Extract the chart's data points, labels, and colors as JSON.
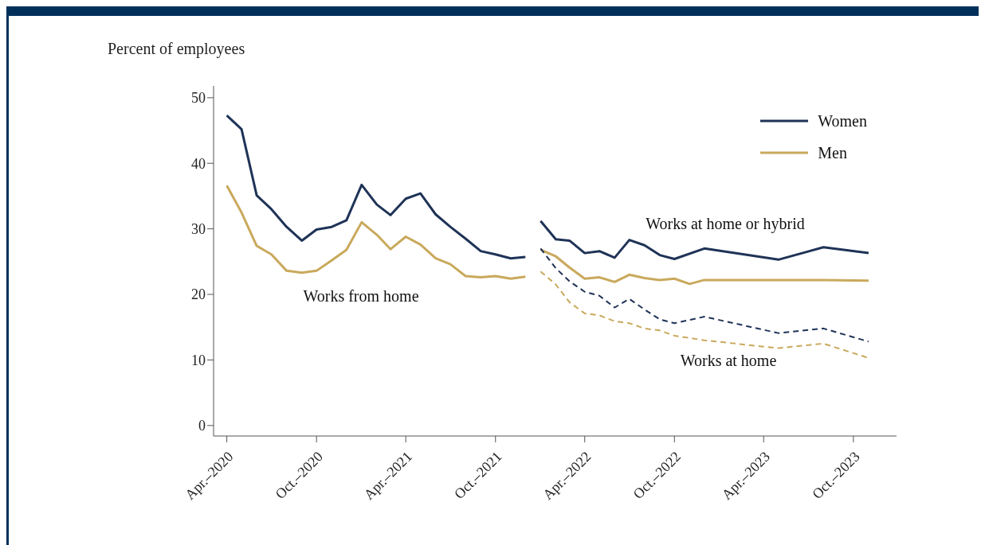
{
  "chart_data": {
    "type": "line",
    "ylabel": "Percent of employees",
    "xlim": [
      "2020-03-05",
      "2023-12-28"
    ],
    "ylim": [
      -1.6,
      51.8
    ],
    "yticks": [
      0,
      10,
      20,
      30,
      40,
      50
    ],
    "xticks": [
      {
        "value": "2020-04",
        "label": "Apr.–2020"
      },
      {
        "value": "2020-10",
        "label": "Oct.–2020"
      },
      {
        "value": "2021-04",
        "label": "Apr.–2021"
      },
      {
        "value": "2021-10",
        "label": "Oct.–2021"
      },
      {
        "value": "2022-04",
        "label": "Apr.–2022"
      },
      {
        "value": "2022-10",
        "label": "Oct.–2022"
      },
      {
        "value": "2023-04",
        "label": "Apr.–2023"
      },
      {
        "value": "2023-10",
        "label": "Oct.–2023"
      }
    ],
    "legend": "top right",
    "series": [
      {
        "name": "Women",
        "color": "#1f3357",
        "x": [
          "2020-04",
          "2020-05",
          "2020-06",
          "2020-07",
          "2020-08",
          "2020-09",
          "2020-10",
          "2020-11",
          "2020-12",
          "2021-01",
          "2021-02",
          "2021-03",
          "2021-04",
          "2021-05",
          "2021-06",
          "2021-07",
          "2021-08",
          "2021-09",
          "2021-10",
          "2021-11",
          "2021-12"
        ],
        "values": [
          47.3,
          45.2,
          35.1,
          33.0,
          30.3,
          28.2,
          29.9,
          30.3,
          31.3,
          36.7,
          33.7,
          32.1,
          34.6,
          35.4,
          32.2,
          30.3,
          28.5,
          26.6,
          26.1,
          25.5,
          25.7
        ]
      },
      {
        "name": "Men",
        "color": "#c9a95c",
        "x": [
          "2020-04",
          "2020-05",
          "2020-06",
          "2020-07",
          "2020-08",
          "2020-09",
          "2020-10",
          "2020-11",
          "2020-12",
          "2021-01",
          "2021-02",
          "2021-03",
          "2021-04",
          "2021-05",
          "2021-06",
          "2021-07",
          "2021-08",
          "2021-09",
          "2021-10",
          "2021-11",
          "2021-12"
        ],
        "values": [
          36.6,
          32.5,
          27.4,
          26.1,
          23.6,
          23.3,
          23.6,
          25.2,
          26.8,
          31.0,
          29.1,
          26.9,
          28.8,
          27.6,
          25.5,
          24.6,
          22.8,
          22.6,
          22.8,
          22.4,
          22.7
        ]
      },
      {
        "color": "#1f3357",
        "x": [
          "2022-01",
          "2022-02",
          "2022-03",
          "2022-04",
          "2022-05",
          "2022-06",
          "2022-07",
          "2022-08",
          "2022-09",
          "2022-10",
          "2022-12",
          "2023-05",
          "2023-08",
          "2023-11"
        ],
        "values": [
          31.2,
          28.4,
          28.2,
          26.3,
          26.6,
          25.6,
          28.3,
          27.5,
          26.0,
          25.4,
          27.0,
          25.3,
          27.2,
          26.3
        ]
      },
      {
        "color": "#c9a95c",
        "x": [
          "2022-01",
          "2022-02",
          "2022-03",
          "2022-04",
          "2022-05",
          "2022-06",
          "2022-07",
          "2022-08",
          "2022-09",
          "2022-10",
          "2022-11",
          "2022-12",
          "2023-05",
          "2023-08",
          "2023-11"
        ],
        "values": [
          26.8,
          25.8,
          24.1,
          22.4,
          22.6,
          21.9,
          23.0,
          22.5,
          22.2,
          22.4,
          21.6,
          22.2,
          22.2,
          22.2,
          22.1
        ]
      },
      {
        "color": "#1f3357",
        "line_style": "dashed",
        "x": [
          "2022-01",
          "2022-02",
          "2022-03",
          "2022-04",
          "2022-05",
          "2022-06",
          "2022-07",
          "2022-08",
          "2022-09",
          "2022-10",
          "2022-12",
          "2023-05",
          "2023-08",
          "2023-11"
        ],
        "values": [
          27.0,
          24.0,
          22.0,
          20.4,
          19.8,
          18.0,
          19.3,
          17.7,
          16.2,
          15.6,
          16.6,
          14.1,
          14.8,
          12.8
        ]
      },
      {
        "color": "#c9a95c",
        "line_style": "dashed",
        "x": [
          "2022-01",
          "2022-02",
          "2022-03",
          "2022-04",
          "2022-05",
          "2022-06",
          "2022-07",
          "2022-08",
          "2022-09",
          "2022-10",
          "2022-12",
          "2023-05",
          "2023-08",
          "2023-11"
        ],
        "values": [
          23.5,
          21.5,
          18.8,
          17.1,
          16.8,
          15.9,
          15.6,
          14.8,
          14.5,
          13.7,
          13.0,
          11.8,
          12.5,
          10.3
        ]
      }
    ],
    "annotations": [
      "Works from home",
      "Works at home or hybrid",
      "Works at home"
    ]
  }
}
